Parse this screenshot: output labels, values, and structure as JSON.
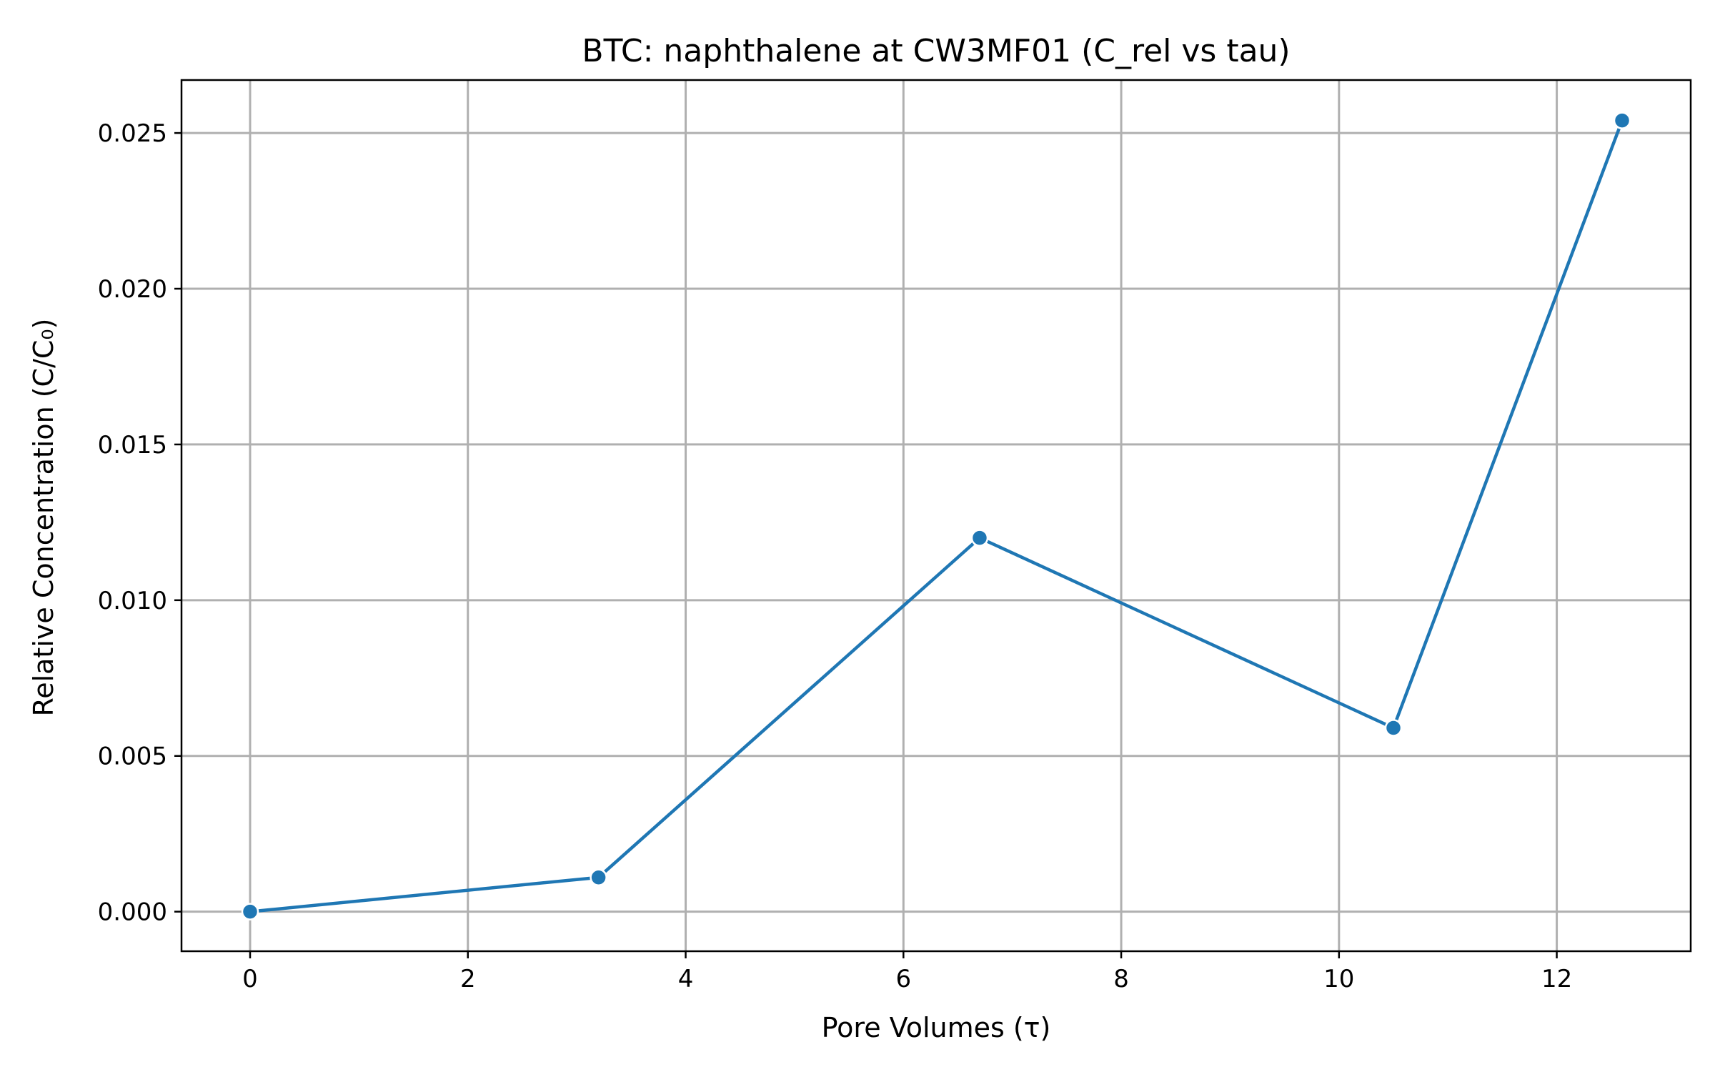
{
  "chart_data": {
    "type": "line",
    "title": "BTC: naphthalene at CW3MF01 (C_rel vs tau)",
    "xlabel": "Pore Volumes (τ)",
    "ylabel": "Relative Concentration (C/C₀)",
    "xlim": [
      -0.63,
      13.23
    ],
    "ylim": [
      -0.00127,
      0.0267
    ],
    "xticks": [
      0,
      2,
      4,
      6,
      8,
      10,
      12
    ],
    "xtick_labels": [
      "0",
      "2",
      "4",
      "6",
      "8",
      "10",
      "12"
    ],
    "yticks": [
      0.0,
      0.005,
      0.01,
      0.015,
      0.02,
      0.025
    ],
    "ytick_labels": [
      "0.000",
      "0.005",
      "0.010",
      "0.015",
      "0.020",
      "0.025"
    ],
    "grid": true,
    "series": [
      {
        "x": [
          0.0,
          3.2,
          6.7,
          10.5,
          12.6
        ],
        "y": [
          0.0,
          0.0011,
          0.012,
          0.0059,
          0.0254
        ],
        "color": "#1f77b4",
        "marker": "circle"
      }
    ]
  }
}
